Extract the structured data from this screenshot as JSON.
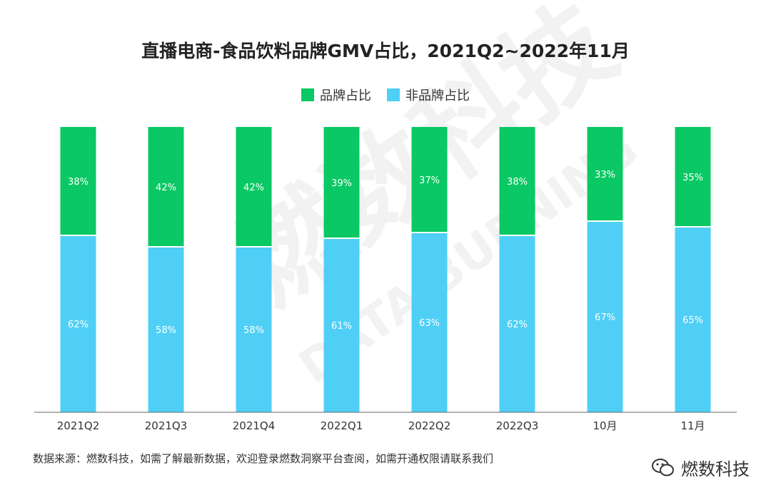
{
  "colors": {
    "brand": "#0AC864",
    "non_brand": "#4FCFF5",
    "axis": "#666666"
  },
  "chart_data": {
    "type": "bar",
    "stacked": true,
    "title": "直播电商-食品饮料品牌GMV占比，2021Q2~2022年11月",
    "categories": [
      "2021Q2",
      "2021Q3",
      "2021Q4",
      "2022Q1",
      "2022Q2",
      "2022Q3",
      "10月",
      "11月"
    ],
    "series": [
      {
        "name": "非品牌占比",
        "values": [
          62,
          58,
          58,
          61,
          63,
          62,
          67,
          65
        ]
      },
      {
        "name": "品牌占比",
        "values": [
          38,
          42,
          42,
          39,
          37,
          38,
          33,
          35
        ]
      }
    ],
    "ylim": [
      0,
      100
    ],
    "xlabel": "",
    "ylabel": "",
    "legend": "top-center",
    "value_suffix": "%"
  },
  "legend": {
    "brand_label": "品牌占比",
    "non_brand_label": "非品牌占比"
  },
  "footer": {
    "source": "数据来源：燃数科技，如需了解最新数据，欢迎登录燃数洞察平台查阅，如需开通权限请联系我们",
    "brand_name": "燃数科技"
  },
  "watermark": {
    "cn": "燃数科技",
    "en": "DATA BURNING"
  }
}
